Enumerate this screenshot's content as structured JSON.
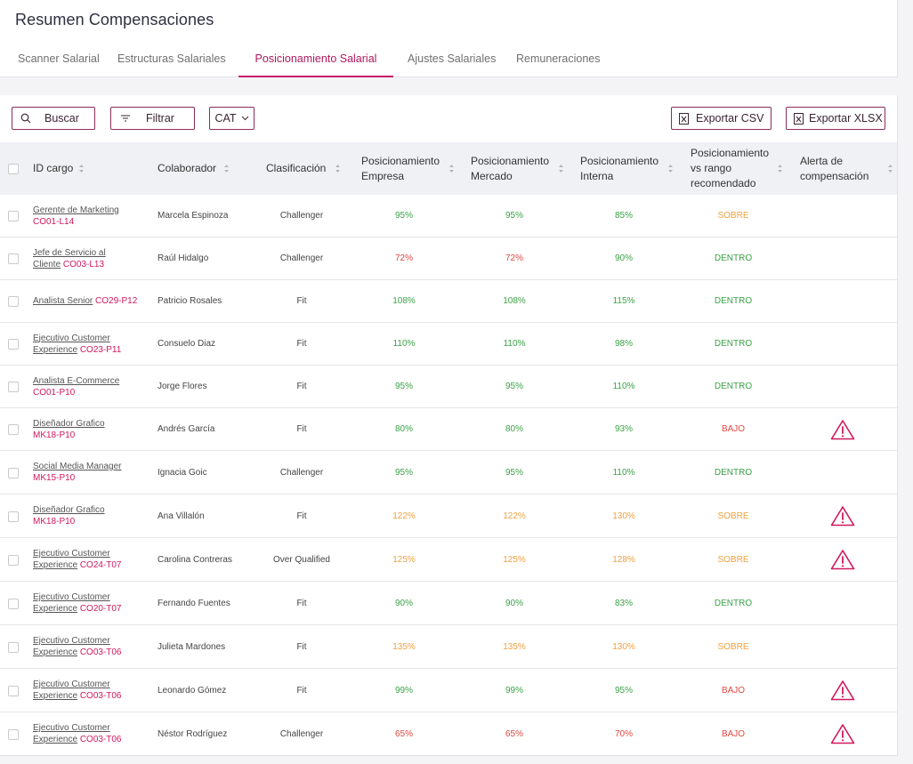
{
  "header": {
    "title": "Resumen Compensaciones",
    "tabs": [
      {
        "label": "Scanner Salarial",
        "active": false
      },
      {
        "label": "Estructuras Salariales",
        "active": false
      },
      {
        "label": "Posicionamiento Salarial",
        "active": true
      },
      {
        "label": "Ajustes Salariales",
        "active": false
      },
      {
        "label": "Remuneraciones",
        "active": false
      }
    ]
  },
  "toolbar": {
    "search_label": "Buscar",
    "filter_label": "Filtrar",
    "cat_label": "CAT",
    "export_csv_label": "Exportar CSV",
    "export_xlsx_label": "Exportar XLSX"
  },
  "colors": {
    "accent": "#c8176a",
    "within": "#3aa246",
    "below": "#e0473e",
    "above": "#f0a040"
  },
  "table": {
    "columns": [
      "ID cargo",
      "Colaborador",
      "Clasificación",
      "Posicionamiento Empresa",
      "Posicionamiento Mercado",
      "Posicionamiento Interna",
      "Posicionamiento vs rango recomendado",
      "Alerta de compensación"
    ],
    "rows": [
      {
        "title": "Gerente de Marketing",
        "code": "CO01-L14",
        "employee": "Marcela Espinoza",
        "classification": "Challenger",
        "empresa": "95%",
        "empresa_color": "green",
        "mercado": "95%",
        "mercado_color": "green",
        "interna": "85%",
        "interna_color": "green",
        "range": "SOBRE",
        "range_color": "orange",
        "alert": false
      },
      {
        "title": "Jefe de Servicio al Cliente",
        "code": "CO03-L13",
        "employee": "Raúl Hidalgo",
        "classification": "Challenger",
        "empresa": "72%",
        "empresa_color": "red",
        "mercado": "72%",
        "mercado_color": "red",
        "interna": "90%",
        "interna_color": "green",
        "range": "DENTRO",
        "range_color": "green",
        "alert": false
      },
      {
        "title": "Analista Senior",
        "code": "CO29-P12",
        "employee": "Patricio Rosales",
        "classification": "Fit",
        "empresa": "108%",
        "empresa_color": "green",
        "mercado": "108%",
        "mercado_color": "green",
        "interna": "115%",
        "interna_color": "green",
        "range": "DENTRO",
        "range_color": "green",
        "alert": false
      },
      {
        "title": "Ejecutivo Customer Experience",
        "code": "CO23-P11",
        "employee": "Consuelo Diaz",
        "classification": "Fit",
        "empresa": "110%",
        "empresa_color": "green",
        "mercado": "110%",
        "mercado_color": "green",
        "interna": "98%",
        "interna_color": "green",
        "range": "DENTRO",
        "range_color": "green",
        "alert": false
      },
      {
        "title": "Analista E-Commerce",
        "code": "CO01-P10",
        "employee": "Jorge Flores",
        "classification": "Fit",
        "empresa": "95%",
        "empresa_color": "green",
        "mercado": "95%",
        "mercado_color": "green",
        "interna": "110%",
        "interna_color": "green",
        "range": "DENTRO",
        "range_color": "green",
        "alert": false
      },
      {
        "title": "Diseñador Grafico",
        "code": "MK18-P10",
        "employee": "Andrés García",
        "classification": "Fit",
        "empresa": "80%",
        "empresa_color": "green",
        "mercado": "80%",
        "mercado_color": "green",
        "interna": "93%",
        "interna_color": "green",
        "range": "BAJO",
        "range_color": "red",
        "alert": true
      },
      {
        "title": "Social Media Manager",
        "code": "MK15-P10",
        "employee": "Ignacia Goic",
        "classification": "Challenger",
        "empresa": "95%",
        "empresa_color": "green",
        "mercado": "95%",
        "mercado_color": "green",
        "interna": "110%",
        "interna_color": "green",
        "range": "DENTRO",
        "range_color": "green",
        "alert": false
      },
      {
        "title": "Diseñador Grafico",
        "code": "MK18-P10",
        "employee": "Ana Villalón",
        "classification": "Fit",
        "empresa": "122%",
        "empresa_color": "orange",
        "mercado": "122%",
        "mercado_color": "orange",
        "interna": "130%",
        "interna_color": "orange",
        "range": "SOBRE",
        "range_color": "orange",
        "alert": true
      },
      {
        "title": "Ejecutivo Customer Experience",
        "code": "CO24-T07",
        "employee": "Carolina Contreras",
        "classification": "Over Qualified",
        "empresa": "125%",
        "empresa_color": "orange",
        "mercado": "125%",
        "mercado_color": "orange",
        "interna": "128%",
        "interna_color": "orange",
        "range": "SOBRE",
        "range_color": "orange",
        "alert": true
      },
      {
        "title": "Ejecutivo Customer Experience",
        "code": "CO20-T07",
        "employee": "Fernando Fuentes",
        "classification": "Fit",
        "empresa": "90%",
        "empresa_color": "green",
        "mercado": "90%",
        "mercado_color": "green",
        "interna": "83%",
        "interna_color": "green",
        "range": "DENTRO",
        "range_color": "green",
        "alert": false
      },
      {
        "title": "Ejecutivo Customer Experience",
        "code": "CO03-T06",
        "employee": "Julieta Mardones",
        "classification": "Fit",
        "empresa": "135%",
        "empresa_color": "orange",
        "mercado": "135%",
        "mercado_color": "orange",
        "interna": "130%",
        "interna_color": "orange",
        "range": "SOBRE",
        "range_color": "orange",
        "alert": false
      },
      {
        "title": "Ejecutivo Customer Experience",
        "code": "CO03-T06",
        "employee": "Leonardo Gómez",
        "classification": "Fit",
        "empresa": "99%",
        "empresa_color": "green",
        "mercado": "99%",
        "mercado_color": "green",
        "interna": "95%",
        "interna_color": "green",
        "range": "BAJO",
        "range_color": "red",
        "alert": true
      },
      {
        "title": "Ejecutivo Customer Experience",
        "code": "CO03-T06",
        "employee": "Néstor Rodríguez",
        "classification": "Challenger",
        "empresa": "65%",
        "empresa_color": "red",
        "mercado": "65%",
        "mercado_color": "red",
        "interna": "70%",
        "interna_color": "red",
        "range": "BAJO",
        "range_color": "red",
        "alert": true
      }
    ]
  }
}
